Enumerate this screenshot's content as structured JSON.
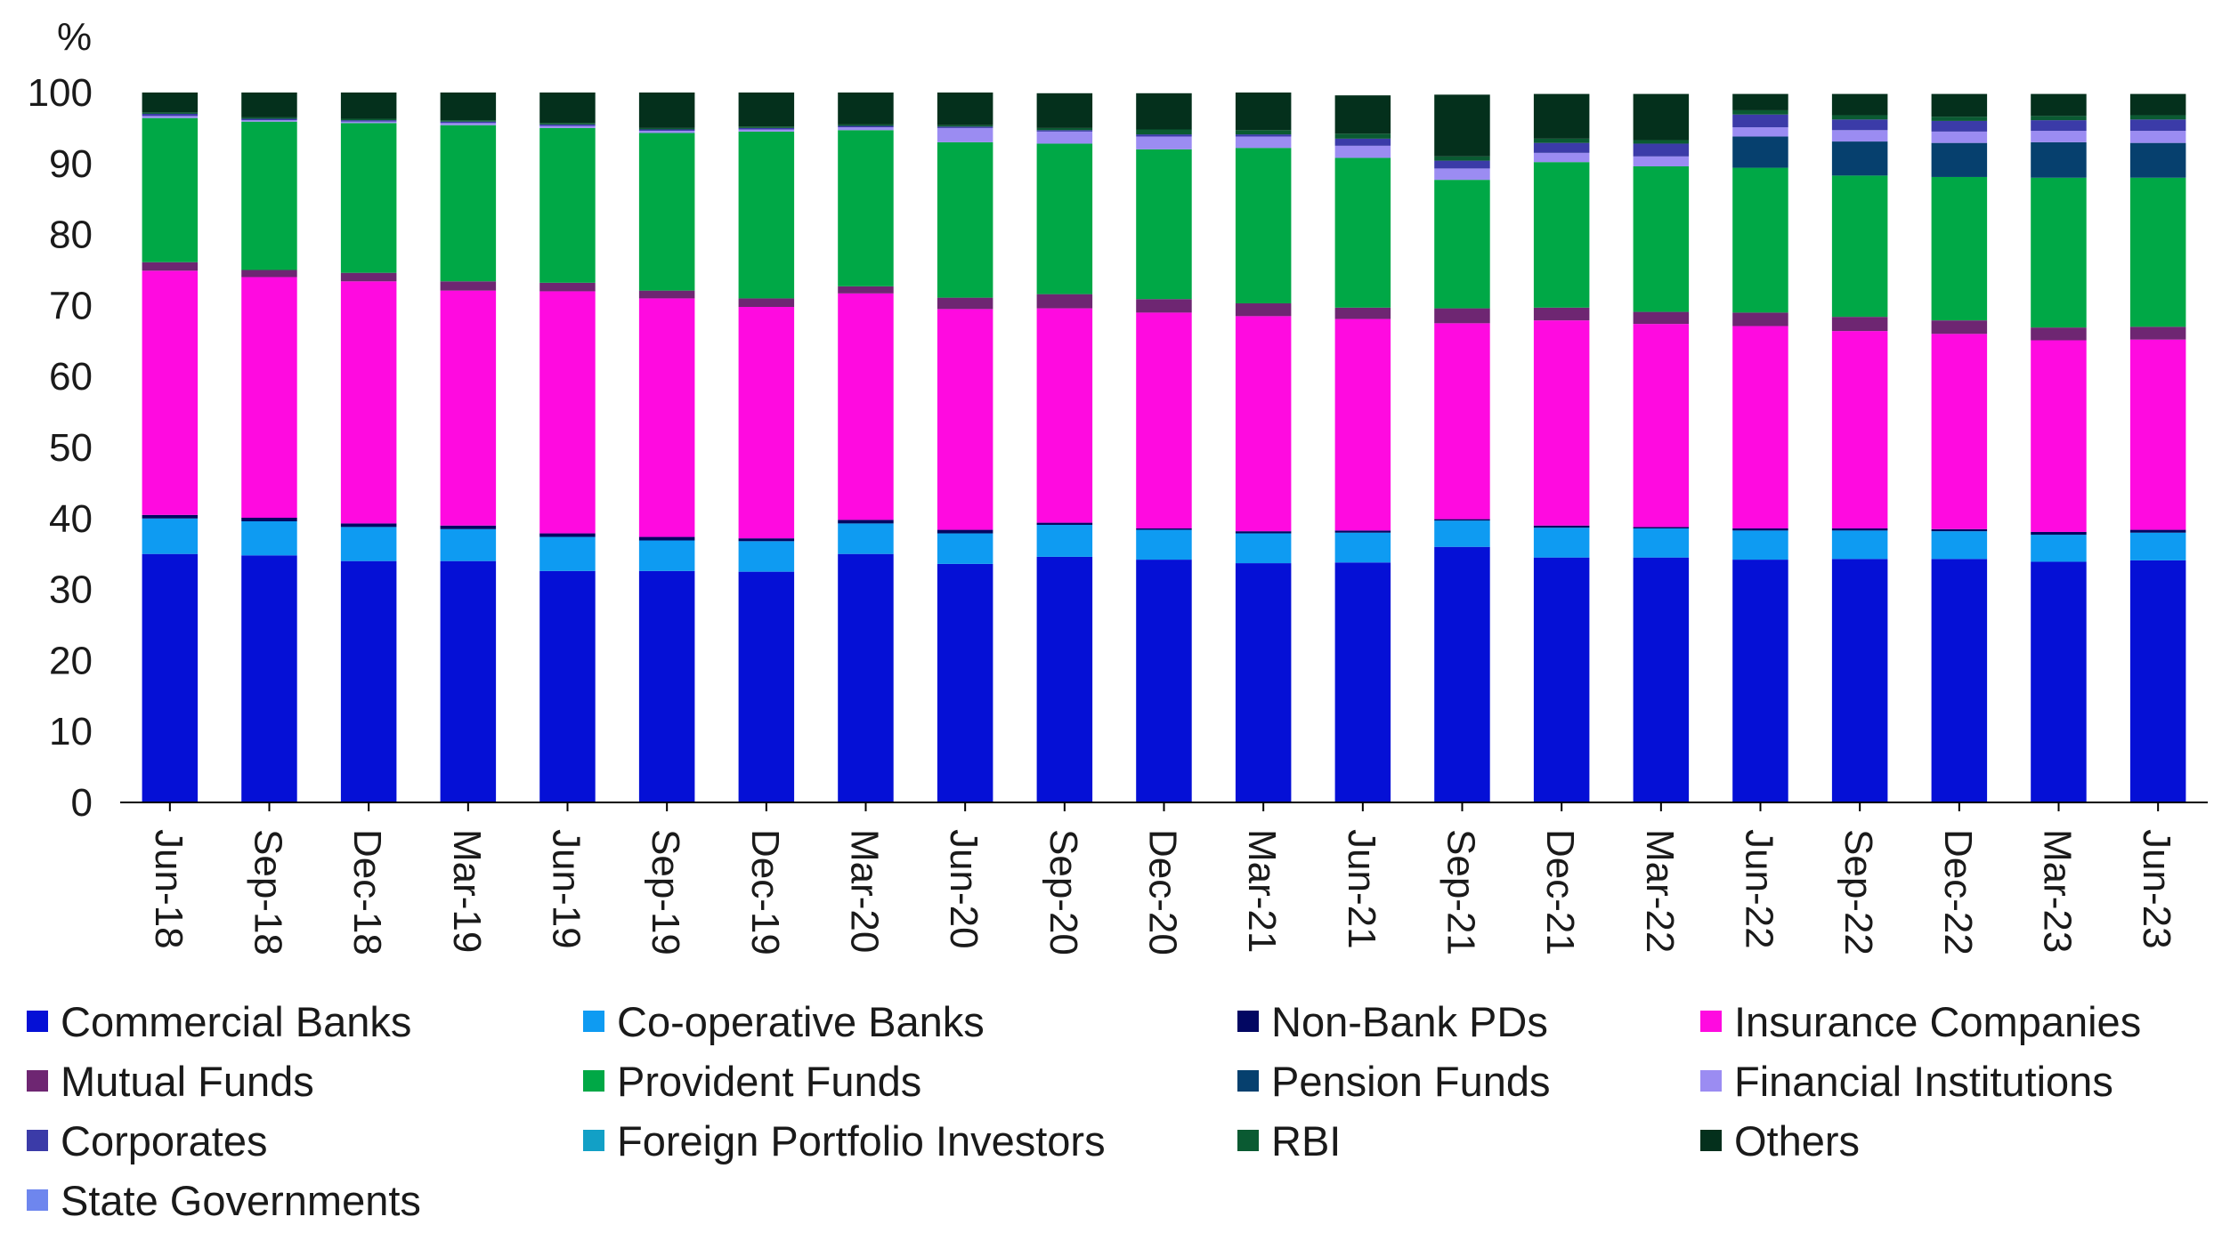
{
  "chart_data": {
    "type": "stacked-bar",
    "y_unit": "%",
    "ylim": [
      0,
      100
    ],
    "yticks": [
      0,
      10,
      20,
      30,
      40,
      50,
      60,
      70,
      80,
      90,
      100
    ],
    "ytick_labels": [
      "0",
      "10",
      "20",
      "30",
      "40",
      "50",
      "60",
      "70",
      "80",
      "90",
      "100"
    ],
    "categories": [
      "Jun-18",
      "Sep-18",
      "Dec-18",
      "Mar-19",
      "Jun-19",
      "Sep-19",
      "Dec-19",
      "Mar-20",
      "Jun-20",
      "Sep-20",
      "Dec-20",
      "Mar-21",
      "Jun-21",
      "Sep-21",
      "Dec-21",
      "Mar-22",
      "Jun-22",
      "Sep-22",
      "Dec-22",
      "Mar-23",
      "Jun-23"
    ],
    "legend_position": "bottom",
    "grid": false,
    "series": [
      {
        "name": "Commercial Banks",
        "color": "#0510d6",
        "values": [
          35.0,
          34.8,
          34.0,
          34.0,
          32.6,
          32.6,
          32.5,
          35.0,
          33.6,
          34.6,
          34.2,
          33.7,
          33.8,
          36.0,
          34.5,
          34.5,
          34.2,
          34.3,
          34.3,
          33.9,
          34.1
        ]
      },
      {
        "name": "Co-operative Banks",
        "color": "#0e9bf2",
        "values": [
          5.0,
          4.8,
          4.8,
          4.5,
          4.8,
          4.3,
          4.3,
          4.3,
          4.3,
          4.5,
          4.2,
          4.2,
          4.2,
          3.7,
          4.2,
          4.1,
          4.1,
          4.0,
          3.9,
          3.8,
          3.9
        ]
      },
      {
        "name": "Non-Bank PDs",
        "color": "#020762",
        "values": [
          0.5,
          0.5,
          0.5,
          0.5,
          0.5,
          0.5,
          0.4,
          0.5,
          0.5,
          0.3,
          0.2,
          0.3,
          0.3,
          0.2,
          0.3,
          0.2,
          0.3,
          0.3,
          0.3,
          0.4,
          0.4
        ]
      },
      {
        "name": "Insurance Companies",
        "color": "#ff0ae0",
        "values": [
          34.4,
          33.9,
          34.1,
          33.1,
          34.1,
          33.6,
          32.6,
          31.9,
          31.1,
          30.2,
          30.4,
          30.3,
          29.8,
          27.6,
          28.9,
          28.6,
          28.5,
          27.8,
          27.5,
          27.0,
          26.8
        ]
      },
      {
        "name": "Mutual Funds",
        "color": "#6e2672",
        "values": [
          1.2,
          1.0,
          1.2,
          1.3,
          1.2,
          1.1,
          1.2,
          1.0,
          1.6,
          2.0,
          1.9,
          1.8,
          1.6,
          2.1,
          1.8,
          1.7,
          1.9,
          2.0,
          1.9,
          1.8,
          1.8
        ]
      },
      {
        "name": "Provident Funds",
        "color": "#00a846",
        "values": [
          20.3,
          20.9,
          21.1,
          22.0,
          21.8,
          22.2,
          23.5,
          22.0,
          21.9,
          21.2,
          21.1,
          21.9,
          21.1,
          18.1,
          20.5,
          20.5,
          20.4,
          19.9,
          20.2,
          21.1,
          21.0
        ]
      },
      {
        "name": "Pension Funds",
        "color": "#06406e",
        "values": [
          0,
          0,
          0,
          0,
          0,
          0,
          0,
          0,
          0,
          0,
          0,
          0,
          0,
          0,
          0,
          0,
          4.4,
          4.8,
          4.8,
          5.0,
          4.9
        ]
      },
      {
        "name": "Financial Institutions",
        "color": "#9b8cf2",
        "values": [
          0.3,
          0.2,
          0.2,
          0.3,
          0.3,
          0.3,
          0.3,
          0.4,
          2.0,
          1.7,
          1.8,
          1.6,
          1.7,
          1.6,
          1.3,
          1.4,
          1.3,
          1.6,
          1.6,
          1.6,
          1.7
        ]
      },
      {
        "name": "Corporates",
        "color": "#3b3ba8",
        "values": [
          0.3,
          0.2,
          0.2,
          0.2,
          0.2,
          0.2,
          0.2,
          0.2,
          0.2,
          0.2,
          0.3,
          0.3,
          1.0,
          1.1,
          1.4,
          1.8,
          1.8,
          1.5,
          1.5,
          1.5,
          1.6
        ]
      },
      {
        "name": "Foreign Portfolio Investors",
        "color": "#12a0c6",
        "values": [
          0,
          0,
          0,
          0,
          0,
          0,
          0,
          0,
          0,
          0,
          0,
          0,
          0,
          0,
          0,
          0,
          0,
          0,
          0,
          0,
          0
        ]
      },
      {
        "name": "RBI",
        "color": "#0a5a32",
        "values": [
          0.2,
          0.2,
          0.2,
          0.2,
          0.2,
          0.2,
          0.2,
          0.2,
          0.2,
          0.3,
          0.7,
          0.6,
          0.7,
          0.6,
          0.6,
          0.5,
          0.6,
          0.6,
          0.6,
          0.6,
          0.6
        ]
      },
      {
        "name": "Others",
        "color": "#04301c",
        "values": [
          2.8,
          3.5,
          3.7,
          3.9,
          4.3,
          5.0,
          4.8,
          4.5,
          4.6,
          4.9,
          5.1,
          5.3,
          5.4,
          8.7,
          6.3,
          6.5,
          2.3,
          3.0,
          3.2,
          3.1,
          3.0
        ]
      },
      {
        "name": "State Governments",
        "color": "#6e86ee",
        "values": [
          0,
          0,
          0,
          0,
          0,
          0,
          0,
          0,
          0,
          0,
          0,
          0,
          0,
          0,
          0,
          0,
          0,
          0,
          0,
          0,
          0
        ]
      }
    ]
  }
}
